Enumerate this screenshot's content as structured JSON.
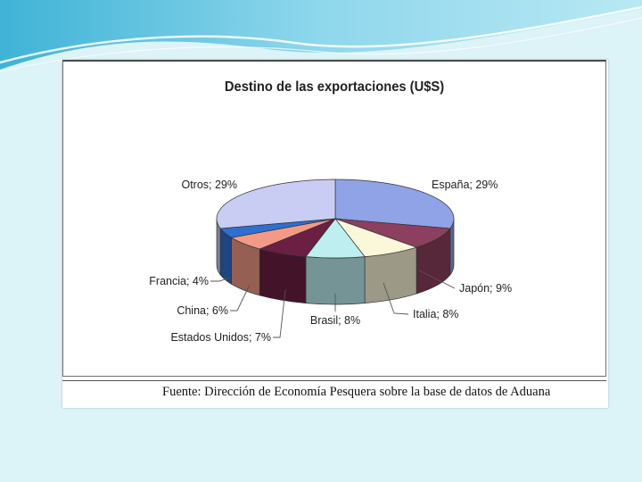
{
  "chart_data": {
    "type": "pie",
    "title": "Destino de las exportaciones (U$S)",
    "slices": [
      {
        "label": "España",
        "value": 29,
        "text": "España; 29%",
        "color": "#8fa3e6"
      },
      {
        "label": "Japón",
        "value": 9,
        "text": "Japón; 9%",
        "color": "#8c3f5e"
      },
      {
        "label": "Italia",
        "value": 8,
        "text": "Italia; 8%",
        "color": "#fbf7d9"
      },
      {
        "label": "Brasil",
        "value": 8,
        "text": "Brasil; 8%",
        "color": "#bdeef0"
      },
      {
        "label": "Estados Unidos",
        "value": 7,
        "text": "Estados Unidos; 7%",
        "color": "#6b1f42"
      },
      {
        "label": "China",
        "value": 6,
        "text": "China; 6%",
        "color": "#f29a86"
      },
      {
        "label": "Francia",
        "value": 4,
        "text": "Francia; 4%",
        "color": "#2f6fd0"
      },
      {
        "label": "Otros",
        "value": 29,
        "text": "Otros; 29%",
        "color": "#c9cdf3"
      }
    ],
    "style": "3d-pie",
    "legend": "none"
  },
  "source": "Fuente: Dirección de Economía Pesquera sobre la base de datos de Aduana"
}
